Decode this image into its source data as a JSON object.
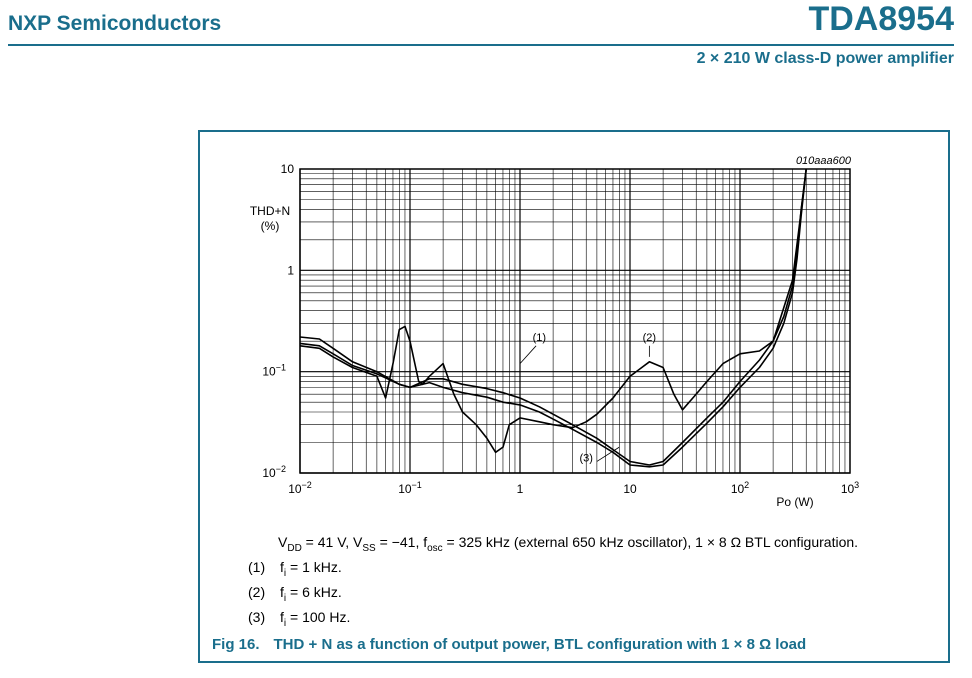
{
  "header": {
    "company": "NXP Semiconductors",
    "product": "TDA8954",
    "subtitle": "2 × 210 W class-D power amplifier"
  },
  "colors": {
    "accent": "#1a6e8c",
    "plot": "#000000"
  },
  "chart_data": {
    "type": "line",
    "figure_code": "010aaa600",
    "ylabel_line1": "THD+N",
    "ylabel_line2": "(%)",
    "xlabel": "Po (W)",
    "xscale": "log",
    "yscale": "log",
    "xlim": [
      0.01,
      1000
    ],
    "ylim": [
      0.01,
      10
    ],
    "grid": true,
    "x_ticks": [
      {
        "base": "10",
        "exp": "−2"
      },
      {
        "base": "10",
        "exp": "−1"
      },
      {
        "base": "1",
        "exp": ""
      },
      {
        "base": "10",
        "exp": ""
      },
      {
        "base": "10",
        "exp": "2"
      },
      {
        "base": "10",
        "exp": "3"
      }
    ],
    "y_ticks": [
      {
        "base": "10",
        "exp": ""
      },
      {
        "base": "1",
        "exp": ""
      },
      {
        "base": "10",
        "exp": "−1"
      },
      {
        "base": "10",
        "exp": "−2"
      }
    ],
    "series": [
      {
        "name": "(1)",
        "x": [
          0.01,
          0.015,
          0.02,
          0.03,
          0.05,
          0.08,
          0.1,
          0.15,
          0.2,
          0.3,
          0.5,
          0.7,
          1,
          1.5,
          2,
          3,
          5,
          7,
          10,
          15,
          20,
          30,
          50,
          70,
          100,
          150,
          200,
          250,
          300,
          330,
          360,
          400
        ],
        "y": [
          0.22,
          0.21,
          0.17,
          0.125,
          0.1,
          0.075,
          0.07,
          0.085,
          0.085,
          0.075,
          0.068,
          0.062,
          0.055,
          0.045,
          0.038,
          0.03,
          0.022,
          0.017,
          0.013,
          0.012,
          0.013,
          0.02,
          0.035,
          0.05,
          0.08,
          0.13,
          0.2,
          0.35,
          0.7,
          1.5,
          4,
          10
        ]
      },
      {
        "name": "(2)",
        "x": [
          0.01,
          0.015,
          0.02,
          0.03,
          0.05,
          0.06,
          0.07,
          0.08,
          0.09,
          0.1,
          0.12,
          0.13,
          0.15,
          0.2,
          0.25,
          0.3,
          0.4,
          0.5,
          0.6,
          0.7,
          0.8,
          1,
          1.5,
          2,
          3,
          4,
          5,
          7,
          10,
          15,
          20,
          25,
          30,
          40,
          50,
          70,
          100,
          150,
          200,
          300,
          350,
          400
        ],
        "y": [
          0.18,
          0.17,
          0.14,
          0.11,
          0.09,
          0.055,
          0.12,
          0.26,
          0.28,
          0.2,
          0.08,
          0.075,
          0.09,
          0.12,
          0.06,
          0.04,
          0.03,
          0.022,
          0.016,
          0.018,
          0.03,
          0.035,
          0.032,
          0.03,
          0.028,
          0.032,
          0.038,
          0.055,
          0.09,
          0.125,
          0.11,
          0.06,
          0.042,
          0.06,
          0.08,
          0.12,
          0.15,
          0.16,
          0.2,
          0.8,
          3,
          10
        ]
      },
      {
        "name": "(3)",
        "x": [
          0.01,
          0.015,
          0.02,
          0.03,
          0.05,
          0.08,
          0.1,
          0.15,
          0.2,
          0.3,
          0.5,
          0.7,
          1,
          1.5,
          2,
          3,
          5,
          7,
          10,
          15,
          20,
          30,
          50,
          70,
          100,
          150,
          200,
          250,
          300,
          330,
          360,
          400
        ],
        "y": [
          0.19,
          0.18,
          0.15,
          0.115,
          0.095,
          0.075,
          0.07,
          0.078,
          0.07,
          0.062,
          0.056,
          0.05,
          0.047,
          0.04,
          0.034,
          0.027,
          0.02,
          0.016,
          0.012,
          0.0115,
          0.012,
          0.018,
          0.031,
          0.045,
          0.07,
          0.11,
          0.17,
          0.3,
          0.6,
          1.3,
          3.5,
          10
        ]
      }
    ],
    "annotations": [
      {
        "text": "(1)",
        "x": 1.5,
        "y": 0.2
      },
      {
        "text": "(2)",
        "x": 15,
        "y": 0.2
      },
      {
        "text": "(3)",
        "x": 4,
        "y": 0.013
      }
    ]
  },
  "conditions": {
    "vdd_prefix": "V",
    "vdd_sub": "DD",
    "vdd_value": " = 41 V, ",
    "vss_prefix": "V",
    "vss_sub": "SS",
    "vss_value": " = −41, ",
    "fosc_prefix": "f",
    "fosc_sub": "osc",
    "fosc_value": " = 325 kHz (external 650 kHz oscillator), 1 × 8 Ω BTL configuration."
  },
  "notes": [
    {
      "num": "(1)",
      "var": "f",
      "sub": "i",
      "value": " = 1 kHz."
    },
    {
      "num": "(2)",
      "var": "f",
      "sub": "i",
      "value": " = 6 kHz."
    },
    {
      "num": "(3)",
      "var": "f",
      "sub": "i",
      "value": " = 100 Hz."
    }
  ],
  "caption": {
    "label": "Fig 16.",
    "text": "THD + N as a function of output power, BTL configuration with 1 × 8 Ω load"
  }
}
